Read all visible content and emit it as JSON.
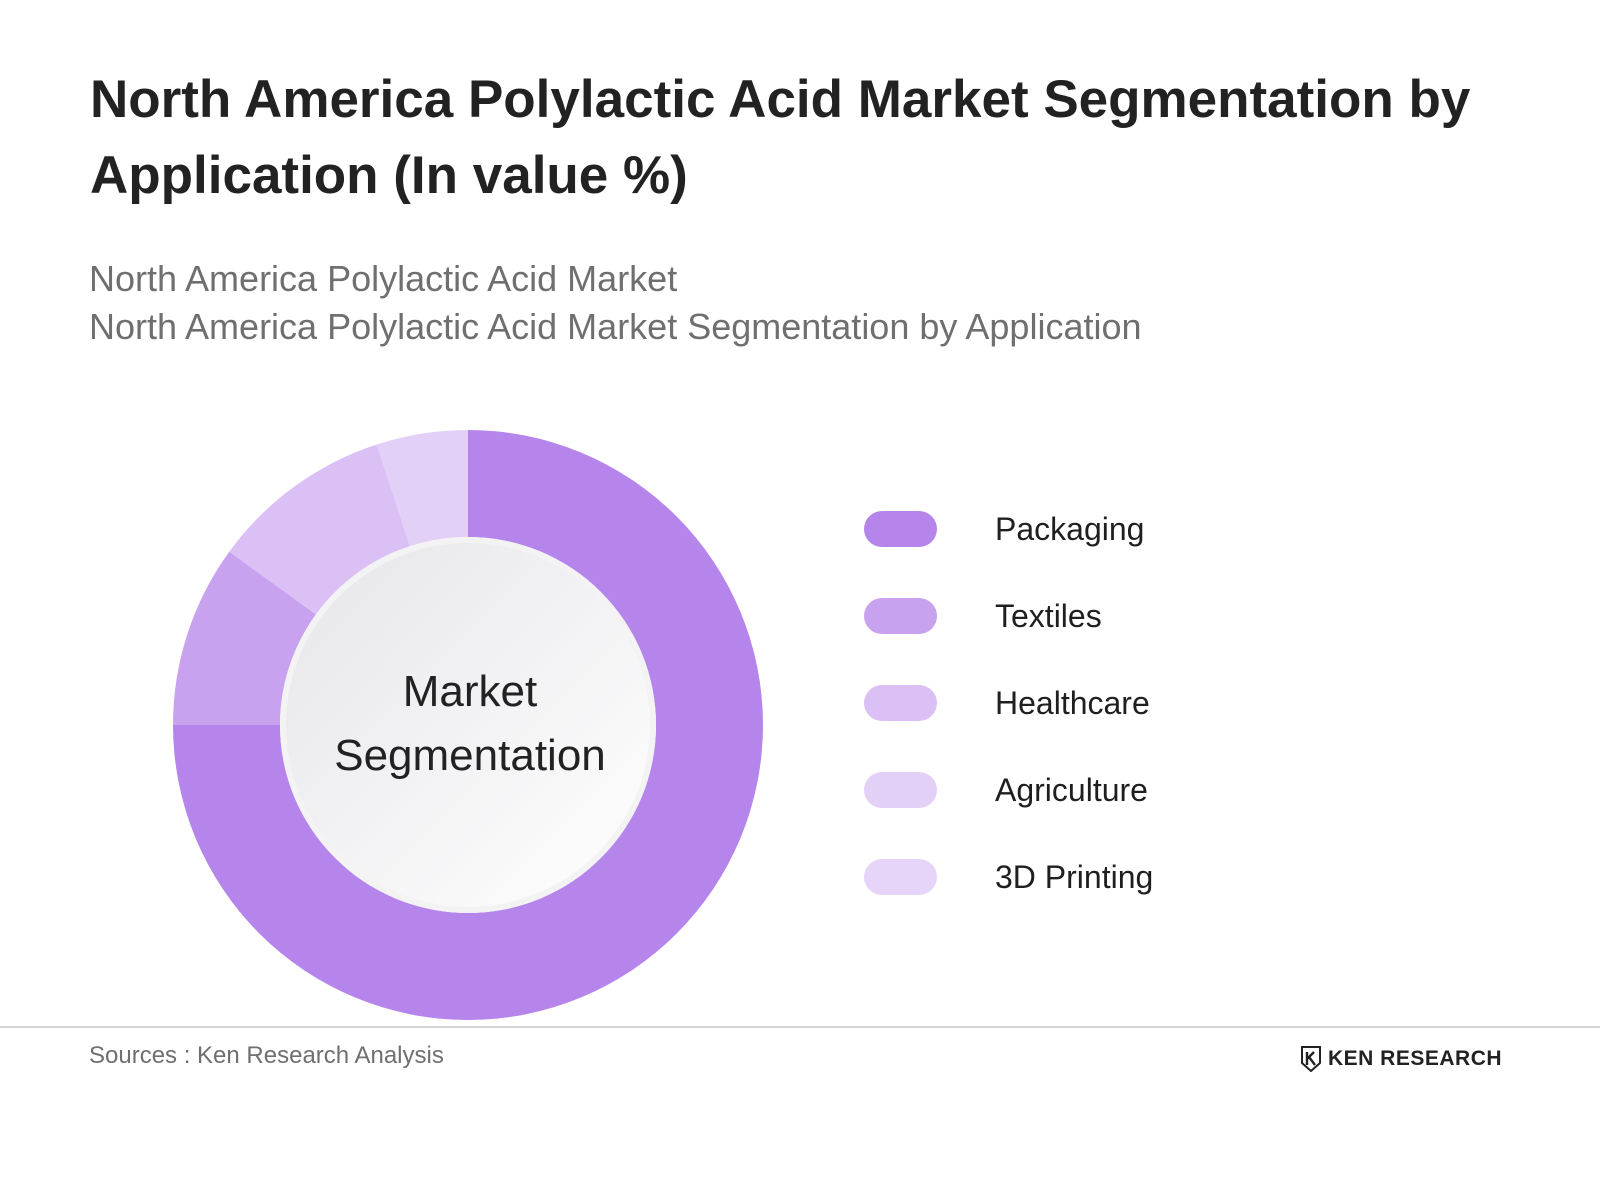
{
  "header": {
    "title": "North America Polylactic Acid Market Segmentation by Application (In value %)",
    "subtitle_line1": "North America Polylactic Acid Market",
    "subtitle_line2": "North America Polylactic Acid Market Segmentation by Application"
  },
  "chart_data": {
    "type": "pie",
    "center_label": "Market Segmentation",
    "categories": [
      "Packaging",
      "Textiles",
      "Healthcare",
      "Agriculture",
      "3D Printing"
    ],
    "values": [
      75,
      10,
      10,
      5,
      0
    ],
    "colors": [
      "#b585ec",
      "#c8a2ef",
      "#dbc0f6",
      "#e3d0f7",
      "#e6d5f8"
    ],
    "legend_position": "right"
  },
  "footer": {
    "source": "Sources : Ken Research Analysis",
    "logo_text": "KEN RESEARCH"
  }
}
